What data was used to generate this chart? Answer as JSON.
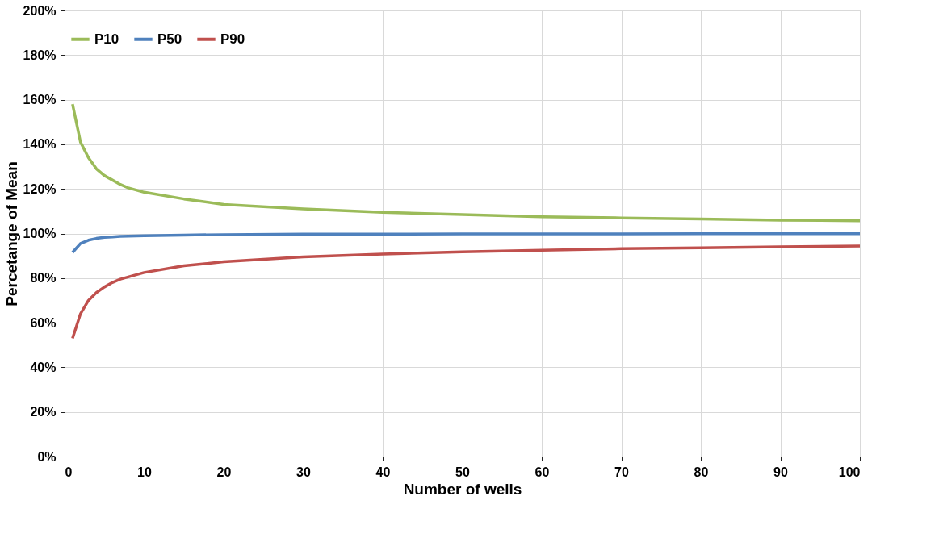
{
  "chart_data": {
    "type": "line",
    "xlabel": "Number of wells",
    "ylabel": "Percetange of Mean",
    "x": [
      1,
      2,
      3,
      4,
      5,
      6,
      7,
      8,
      10,
      15,
      20,
      30,
      40,
      50,
      60,
      70,
      80,
      90,
      100
    ],
    "xlim": [
      0,
      100
    ],
    "xticks": [
      0,
      10,
      20,
      30,
      40,
      50,
      60,
      70,
      80,
      90,
      100
    ],
    "ylim": [
      0,
      200
    ],
    "yticks": [
      {
        "value": 0,
        "label": "0%"
      },
      {
        "value": 20,
        "label": "20%"
      },
      {
        "value": 40,
        "label": "40%"
      },
      {
        "value": 60,
        "label": "60%"
      },
      {
        "value": 80,
        "label": "80%"
      },
      {
        "value": 100,
        "label": "100%"
      },
      {
        "value": 120,
        "label": "120%"
      },
      {
        "value": 140,
        "label": "140%"
      },
      {
        "value": 160,
        "label": "160%"
      },
      {
        "value": 180,
        "label": "180%"
      },
      {
        "value": 200,
        "label": "200%"
      }
    ],
    "grid": true,
    "legend": "top",
    "marker": "none",
    "line_style": "solid",
    "series": [
      {
        "name": "P10",
        "color": "#9bbb59",
        "values": [
          158,
          141,
          134,
          129,
          126,
          124,
          122,
          120.5,
          118.5,
          115.5,
          113,
          111,
          109.5,
          108.5,
          107.5,
          107,
          106.5,
          106,
          105.7
        ]
      },
      {
        "name": "P50",
        "color": "#4f81bd",
        "values": [
          91.5,
          95.5,
          97,
          97.8,
          98.3,
          98.5,
          98.7,
          98.8,
          99,
          99.3,
          99.5,
          99.7,
          99.7,
          99.8,
          99.8,
          99.8,
          99.9,
          99.9,
          99.9
        ]
      },
      {
        "name": "P90",
        "color": "#c0504d",
        "values": [
          53,
          64,
          70,
          73.5,
          76,
          78,
          79.5,
          80.5,
          82.5,
          85.5,
          87.3,
          89.5,
          90.8,
          91.8,
          92.5,
          93.2,
          93.6,
          94,
          94.4
        ]
      }
    ]
  }
}
